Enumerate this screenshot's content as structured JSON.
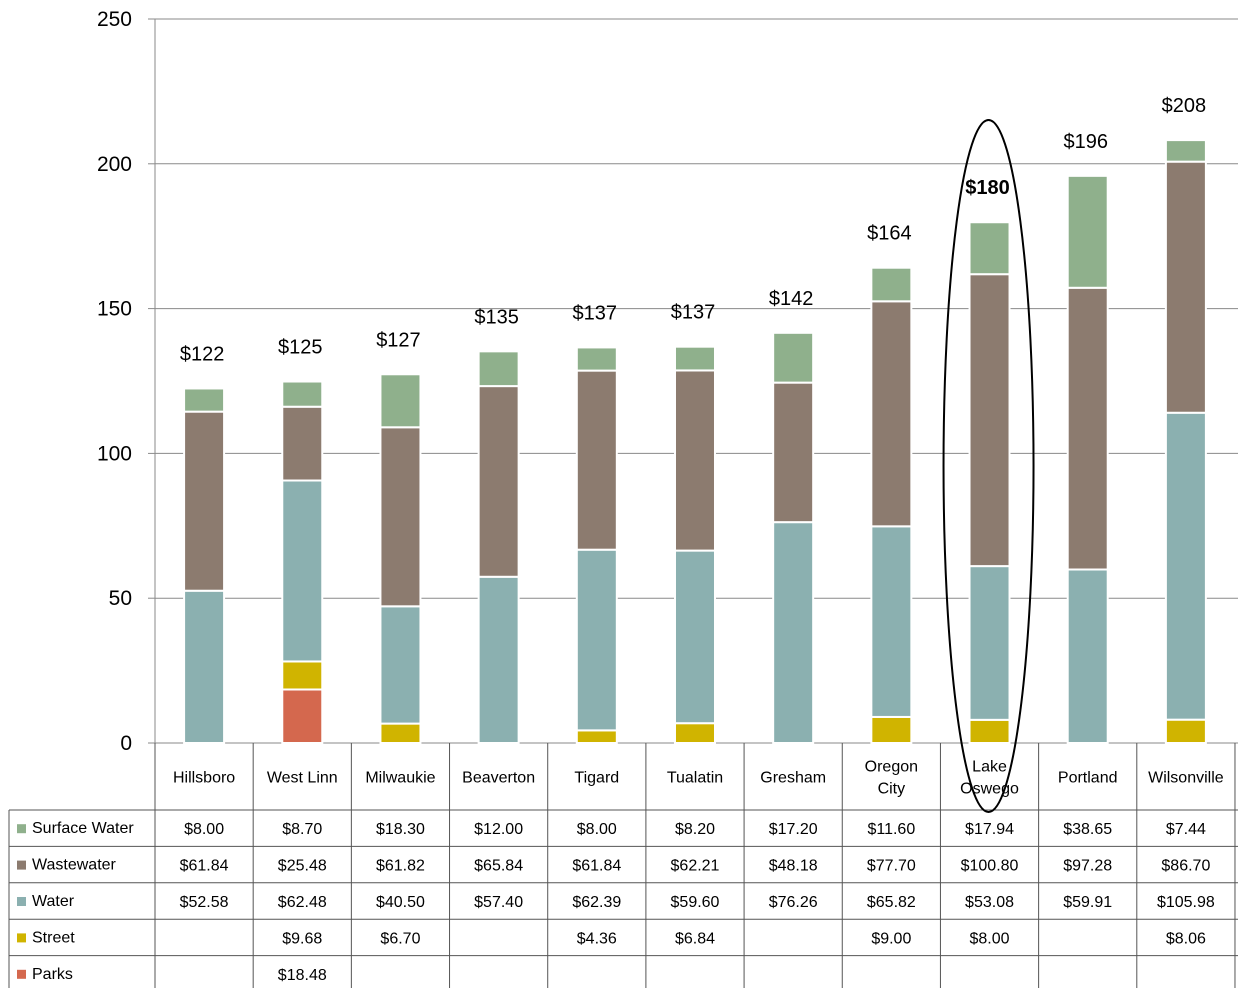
{
  "chart_data": {
    "type": "bar",
    "stacked": true,
    "ylim": [
      0,
      250
    ],
    "yticks": [
      "0",
      "50",
      "100",
      "150",
      "200",
      "250"
    ],
    "grid": true,
    "categories": [
      [
        "Hillsboro"
      ],
      [
        "West Linn"
      ],
      [
        "Milwaukie"
      ],
      [
        "Beaverton"
      ],
      [
        "Tigard"
      ],
      [
        "Tualatin"
      ],
      [
        "Gresham"
      ],
      [
        "Oregon",
        "City"
      ],
      [
        "Lake",
        "Oswego"
      ],
      [
        "Portland"
      ],
      [
        "Wilsonville"
      ]
    ],
    "totals": [
      "$122",
      "$125",
      "$127",
      "$135",
      "$137",
      "$137",
      "$142",
      "$164",
      "$180",
      "$196",
      "$208"
    ],
    "highlight_index": 8,
    "series": [
      {
        "name": "Parks",
        "color": "#d4684e",
        "values": [
          null,
          18.48,
          null,
          null,
          null,
          null,
          null,
          null,
          null,
          null,
          null
        ],
        "labels": [
          "",
          "$18.48",
          "",
          "",
          "",
          "",
          "",
          "",
          "",
          "",
          ""
        ]
      },
      {
        "name": "Street",
        "color": "#d0b400",
        "values": [
          null,
          9.68,
          6.7,
          null,
          4.36,
          6.84,
          null,
          9.0,
          8.0,
          null,
          8.06
        ],
        "labels": [
          "",
          "$9.68",
          "$6.70",
          "",
          "$4.36",
          "$6.84",
          "",
          "$9.00",
          "$8.00",
          "",
          "$8.06"
        ]
      },
      {
        "name": "Water",
        "color": "#8bb0b0",
        "values": [
          52.58,
          62.48,
          40.5,
          57.4,
          62.39,
          59.6,
          76.26,
          65.82,
          53.08,
          59.91,
          105.98
        ],
        "labels": [
          "$52.58",
          "$62.48",
          "$40.50",
          "$57.40",
          "$62.39",
          "$59.60",
          "$76.26",
          "$65.82",
          "$53.08",
          "$59.91",
          "$105.98"
        ]
      },
      {
        "name": "Wastewater",
        "color": "#8c7b6f",
        "values": [
          61.84,
          25.48,
          61.82,
          65.84,
          61.84,
          62.21,
          48.18,
          77.7,
          100.8,
          97.28,
          86.7
        ],
        "labels": [
          "$61.84",
          "$25.48",
          "$61.82",
          "$65.84",
          "$61.84",
          "$62.21",
          "$48.18",
          "$77.70",
          "$100.80",
          "$97.28",
          "$86.70"
        ]
      },
      {
        "name": "Surface Water",
        "color": "#8fb08c",
        "values": [
          8.0,
          8.7,
          18.3,
          12.0,
          8.0,
          8.2,
          17.2,
          11.6,
          17.94,
          38.65,
          7.44
        ],
        "labels": [
          "$8.00",
          "$8.70",
          "$18.30",
          "$12.00",
          "$8.00",
          "$8.20",
          "$17.20",
          "$11.60",
          "$17.94",
          "$38.65",
          "$7.44"
        ]
      }
    ],
    "table_row_order": [
      "Surface Water",
      "Wastewater",
      "Water",
      "Street",
      "Parks"
    ]
  }
}
